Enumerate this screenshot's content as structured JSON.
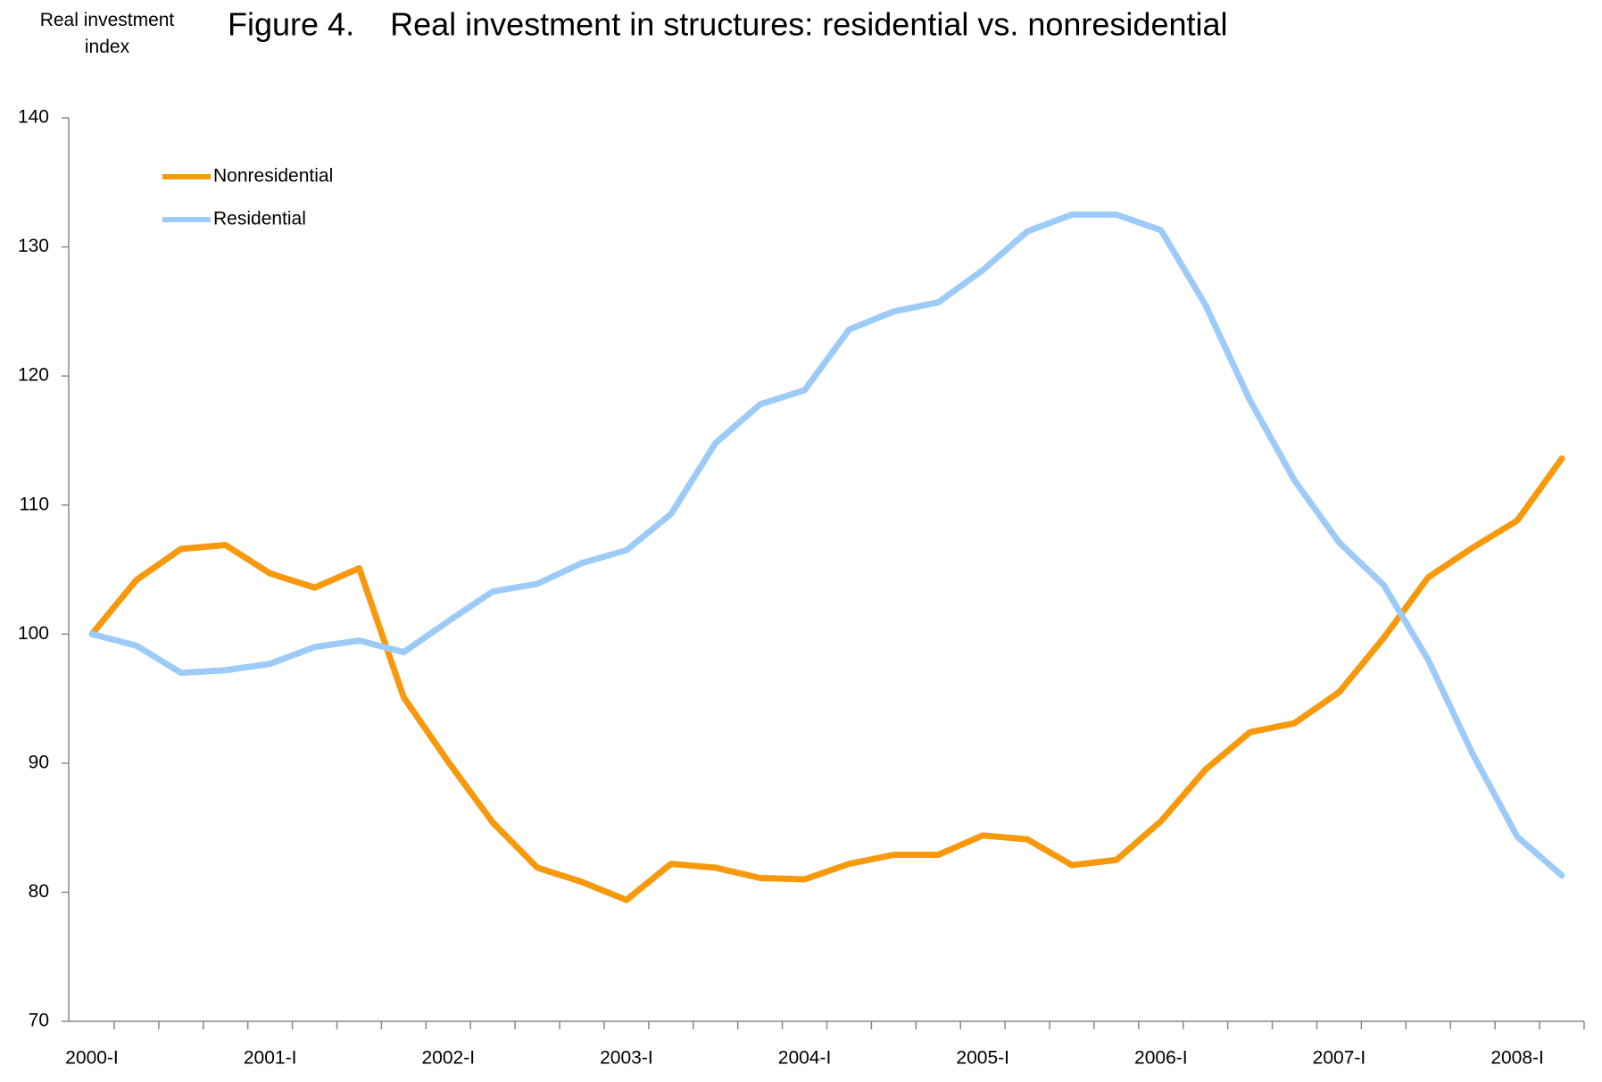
{
  "chart_data": {
    "type": "line",
    "title": "Figure 4.    Real investment in structures: residential vs. nonresidential",
    "y_label": "Real investment index",
    "categories": [
      "2000-I",
      null,
      null,
      null,
      "2001-I",
      null,
      null,
      null,
      "2002-I",
      null,
      null,
      null,
      "2003-I",
      null,
      null,
      null,
      "2004-I",
      null,
      null,
      null,
      "2005-I",
      null,
      null,
      null,
      "2006-I",
      null,
      null,
      null,
      "2007-I",
      null,
      null,
      null,
      "2008-I",
      null
    ],
    "series": [
      {
        "name": "Nonresidential",
        "color": "#f7990d",
        "values": [
          100,
          104.2,
          106.6,
          106.9,
          104.7,
          103.6,
          105.1,
          95.1,
          90.1,
          85.4,
          81.9,
          80.8,
          79.4,
          82.2,
          81.9,
          81.1,
          81.0,
          82.2,
          82.9,
          82.9,
          84.4,
          84.1,
          82.1,
          82.5,
          85.5,
          89.5,
          92.4,
          93.1,
          95.5,
          99.7,
          104.4,
          106.7,
          108.8,
          113.6
        ]
      },
      {
        "name": "Residential",
        "color": "#9dcbf7",
        "values": [
          100,
          99.1,
          97.0,
          97.2,
          97.7,
          99.0,
          99.5,
          98.6,
          101.0,
          103.3,
          103.9,
          105.5,
          106.5,
          109.3,
          114.8,
          117.8,
          118.9,
          123.6,
          125.0,
          125.7,
          128.2,
          131.2,
          132.5,
          132.5,
          131.3,
          125.5,
          118.1,
          111.9,
          107.1,
          103.8,
          98.0,
          90.7,
          84.3,
          81.3
        ]
      }
    ],
    "ylim": [
      70,
      140
    ],
    "yticks": [
      70,
      80,
      90,
      100,
      110,
      120,
      130,
      140
    ],
    "grid": false,
    "legend": "upper left"
  }
}
